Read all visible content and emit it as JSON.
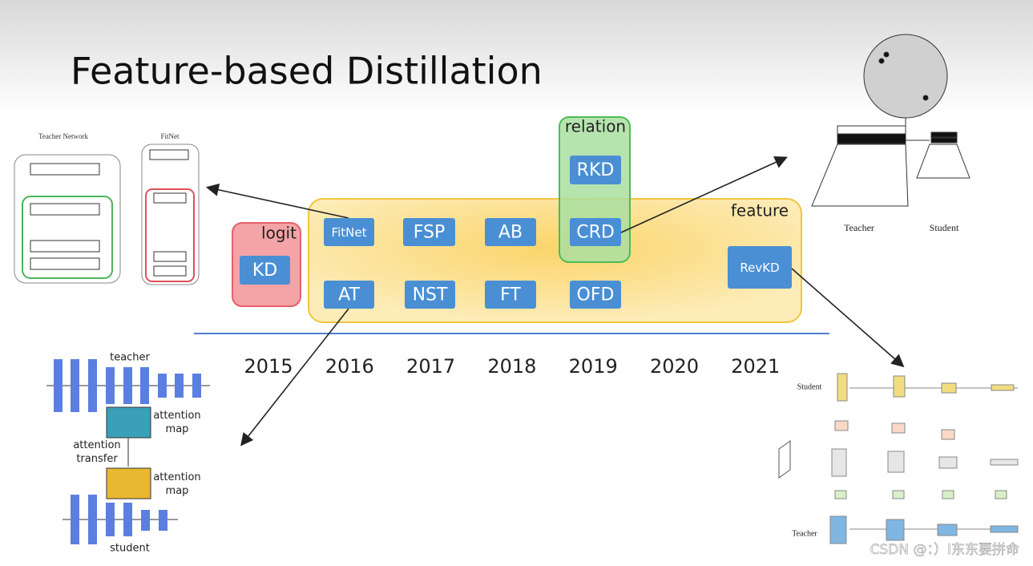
{
  "header": {
    "title": "Feature-based Distillation"
  },
  "groups": {
    "logit": {
      "label": "logit",
      "methods": [
        "KD"
      ]
    },
    "feature": {
      "label": "feature",
      "methods": [
        "FitNet",
        "FSP",
        "AB",
        "AT",
        "NST",
        "FT",
        "OFD",
        "RevKD"
      ]
    },
    "relation": {
      "label": "relation",
      "methods": [
        "RKD",
        "CRD"
      ]
    }
  },
  "timeline": {
    "years": [
      "2015",
      "2016",
      "2017",
      "2018",
      "2019",
      "2020",
      "2021"
    ]
  },
  "insets": {
    "fitnet": {
      "teacher_label": "Teacher Network",
      "student_label": "FitNet"
    },
    "attention": {
      "teacher": "teacher",
      "map_top": [
        "attention",
        "map"
      ],
      "transfer": [
        "attention",
        "transfer"
      ],
      "map_bottom": [
        "attention",
        "map"
      ],
      "student": "student"
    },
    "crd": {
      "teacher": "Teacher",
      "student": "Student"
    },
    "revkd": {
      "student": "Student",
      "teacher": "Teacher"
    }
  },
  "watermark": "CSDN @：）I东东要拼命"
}
